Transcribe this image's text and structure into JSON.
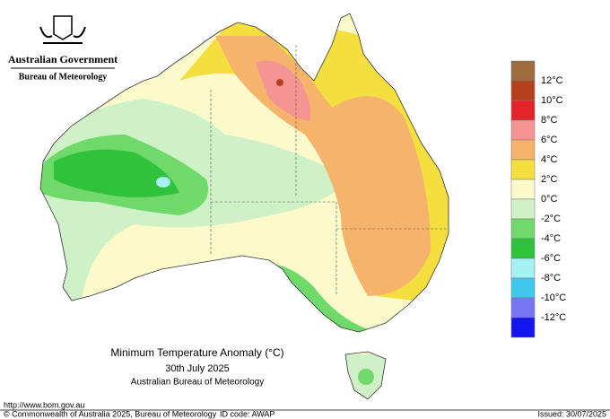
{
  "header": {
    "government": "Australian Government",
    "bureau": "Bureau of Meteorology"
  },
  "legend": {
    "items": [
      {
        "color": "#9c6b3e"
      },
      {
        "label": "12°C",
        "color": "#b5401c"
      },
      {
        "label": "10°C",
        "color": "#e4242b"
      },
      {
        "label": "8°C",
        "color": "#f59593"
      },
      {
        "label": "6°C",
        "color": "#f5b36c"
      },
      {
        "label": "4°C",
        "color": "#f5df3e"
      },
      {
        "label": "2°C",
        "color": "#fafacb"
      },
      {
        "label": "0°C",
        "color": "#cef1c7"
      },
      {
        "label": "-2°C",
        "color": "#6fd96a"
      },
      {
        "label": "-4°C",
        "color": "#31c23c"
      },
      {
        "label": "-6°C",
        "color": "#a6f1f3"
      },
      {
        "label": "-8°C",
        "color": "#3fc8ee"
      },
      {
        "label": "-10°C",
        "color": "#7777f2"
      },
      {
        "label": "-12°C",
        "color": "#1414f0"
      }
    ]
  },
  "title": {
    "line1": "Minimum Temperature Anomaly (°C)",
    "line2": "30th July 2025",
    "line3": "Australian Bureau of Meteorology"
  },
  "footer": {
    "url": "http://www.bom.gov.au",
    "copyright": "© Commonwealth of Australia 2025, Bureau of Meteorology",
    "id_code": "ID code: AWAP",
    "issued": "Issued: 30/07/2025"
  }
}
